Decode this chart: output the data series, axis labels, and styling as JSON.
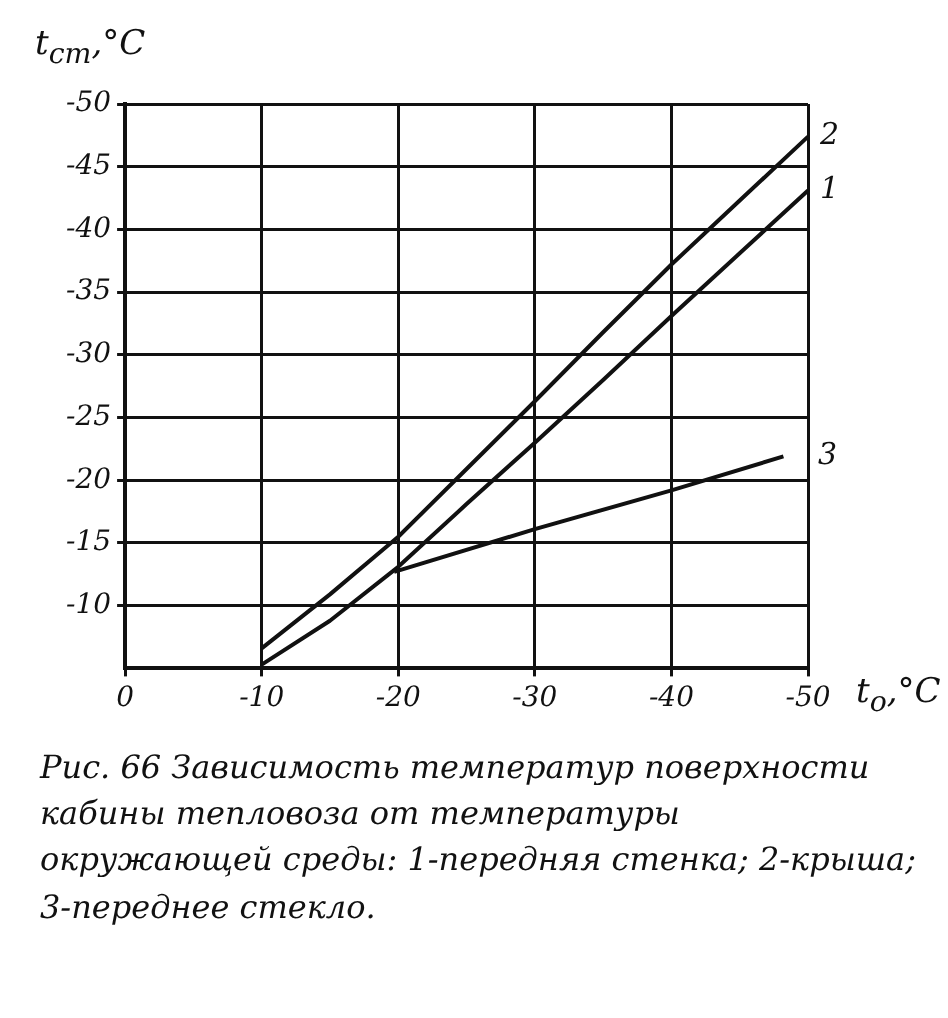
{
  "chart_data": {
    "type": "line",
    "xlabel": "t$_{о}$,°C",
    "ylabel": "t$_{ст}$,°C",
    "xlim": [
      0,
      -50
    ],
    "xticks": [
      0,
      -10,
      -20,
      -30,
      -40,
      -50
    ],
    "ylim": [
      -5,
      -50
    ],
    "yticks": [
      -10,
      -15,
      -20,
      -25,
      -30,
      -35,
      -40,
      -45,
      -50
    ],
    "grid": true,
    "legend": false,
    "series": [
      {
        "name": "1",
        "color": "#111111",
        "x": [
          -10,
          -15,
          -20,
          -25,
          -30,
          -35,
          -40,
          -45,
          -50
        ],
        "values": [
          -5.3,
          -8.8,
          -13.1,
          -18.1,
          -23,
          -28,
          -33.1,
          -38.1,
          -43.1
        ]
      },
      {
        "name": "2",
        "color": "#111111",
        "x": [
          -10,
          -15,
          -20,
          -25,
          -30,
          -35,
          -40,
          -45,
          -50
        ],
        "values": [
          -6.6,
          -10.9,
          -15.5,
          -20.9,
          -26.3,
          -31.8,
          -37.2,
          -42.3,
          -47.4
        ]
      },
      {
        "name": "3",
        "color": "#111111",
        "x": [
          -19.7,
          -30,
          -40,
          -48.2
        ],
        "values": [
          -12.7,
          -16.1,
          -19.2,
          -21.9
        ]
      }
    ],
    "annotations": [
      "Рис. 66 Зависимость температур поверхности кабины тепловоза от температуры окружающей среды:  1-передняя стенка; 2-крыша; 3-переднее стекло."
    ]
  }
}
